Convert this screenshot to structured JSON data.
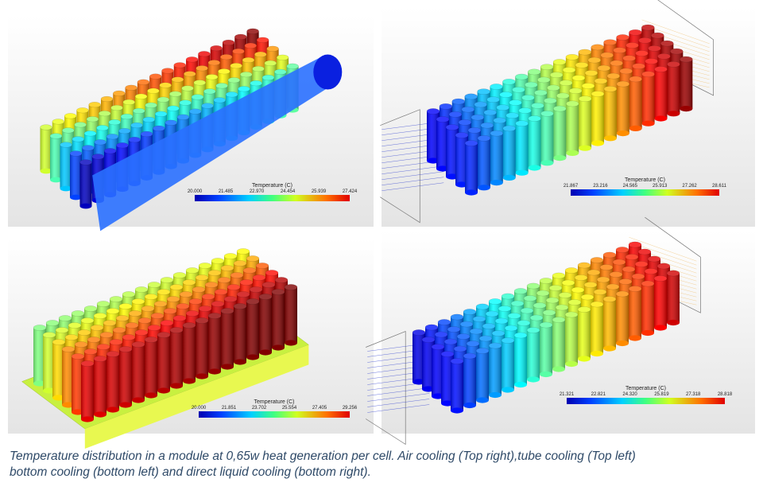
{
  "figure": {
    "panels": [
      {
        "colorbar": {
          "title": "Temperature (C)",
          "ticks": [
            "20.000",
            "21.485",
            "22.970",
            "24.454",
            "25.939",
            "27.424"
          ]
        }
      },
      {
        "colorbar": {
          "title": "Temperature (C)",
          "ticks": [
            "21.867",
            "23.216",
            "24.565",
            "25.913",
            "27.262",
            "28.611"
          ]
        }
      },
      {
        "colorbar": {
          "title": "Temperature (C)",
          "ticks": [
            "20.000",
            "21.851",
            "23.702",
            "25.554",
            "27.405",
            "29.256"
          ]
        }
      },
      {
        "colorbar": {
          "title": "Temperature (C)",
          "ticks": [
            "21.321",
            "22.821",
            "24.320",
            "25.819",
            "27.318",
            "28.818"
          ]
        }
      }
    ],
    "caption": [
      "Temperature distribution in a module at 0,65w heat generation per cell. Air cooling (Top right),tube cooling (Top left)",
      "bottom cooling (bottom left) and direct liquid cooling (bottom right)."
    ]
  }
}
